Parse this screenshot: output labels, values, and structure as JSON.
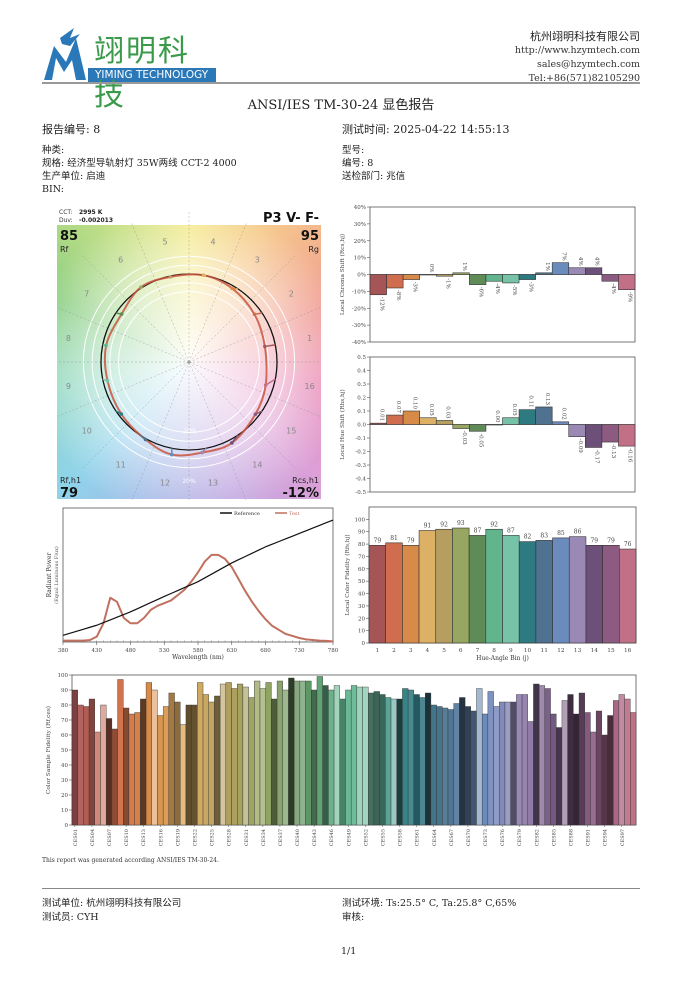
{
  "logo": {
    "cn": "翊明科技",
    "en": "YIMING TECHNOLOGY"
  },
  "company": {
    "name": "杭州翊明科技有限公司",
    "website": "http://www.hzymtech.com",
    "email": "sales@hzymtech.com",
    "tel": "Tel:+86(571)82105290"
  },
  "title": "ANSI/IES TM-30-24 显色报告",
  "info": {
    "report_no": "报告编号: 8",
    "test_time": "测试时间: 2025-04-22 14:55:13",
    "category": "种类:",
    "model": "型号:",
    "spec": "规格: 经济型导轨射灯 35W两线 CCT-2 4000",
    "number": "编号: 8",
    "manufacturer": "生产单位: 启迪",
    "department": "送检部门: 兆信",
    "bin": "BIN:"
  },
  "vector_graphic": {
    "cct_label": "CCT:",
    "cct": "2995 K",
    "duv_label": "Duv:",
    "duv": "-0.002013",
    "classification": "P3 V- F-",
    "rf": "85",
    "rf_label": "Rf",
    "rg": "95",
    "rg_label": "Rg",
    "rfh1_label": "Rf,h1",
    "rfh1": "79",
    "rcsh1_label": "Rcs,h1",
    "rcsh1": "-12%",
    "minus20": "-20%",
    "plus20": "20%",
    "bins": [
      "1",
      "2",
      "3",
      "4",
      "5",
      "6",
      "7",
      "8",
      "9",
      "10",
      "11",
      "12",
      "13",
      "14",
      "15",
      "16"
    ]
  },
  "chart_data": [
    {
      "type": "bar",
      "ylabel": "Local Chroma Shift (Rcs,hj)",
      "ylim": [
        -40,
        40
      ],
      "yticks": [
        "-40%",
        "-30%",
        "-20%",
        "-10%",
        "0%",
        "10%",
        "20%",
        "30%",
        "40%"
      ],
      "categories": [
        1,
        2,
        3,
        4,
        5,
        6,
        7,
        8,
        9,
        10,
        11,
        12,
        13,
        14,
        15,
        16
      ],
      "values": [
        -12,
        -8,
        -3,
        0,
        -1,
        1,
        -6,
        -4,
        -5,
        -3,
        1,
        7,
        4,
        4,
        -4,
        -9
      ],
      "labels": [
        "-12%",
        "-8%",
        "-3%",
        "0%",
        "-1%",
        "1%",
        "-6%",
        "-4%",
        "-5%",
        "-3%",
        "1%",
        "7%",
        "4%",
        "4%",
        "-4%",
        "-9%"
      ]
    },
    {
      "type": "bar",
      "ylabel": "Local Hue Shift (Rhs,hj)",
      "ylim": [
        -0.5,
        0.5
      ],
      "yticks": [
        "-0.5",
        "-0.4",
        "-0.3",
        "-0.2",
        "-0.1",
        "0.0",
        "0.1",
        "0.2",
        "0.3",
        "0.4",
        "0.5"
      ],
      "categories": [
        1,
        2,
        3,
        4,
        5,
        6,
        7,
        8,
        9,
        10,
        11,
        12,
        13,
        14,
        15,
        16
      ],
      "values": [
        0.01,
        0.07,
        0.1,
        0.05,
        0.03,
        -0.03,
        -0.05,
        0.0,
        0.05,
        0.11,
        0.13,
        0.02,
        -0.09,
        -0.17,
        -0.13,
        -0.16
      ],
      "labels": [
        "0.01",
        "0.07",
        "0.10",
        "0.05",
        "0.03",
        "-0.03",
        "-0.05",
        "0.00",
        "0.05",
        "0.11",
        "0.13",
        "0.02",
        "-0.09",
        "-0.17",
        "-0.13",
        "-0.16"
      ]
    },
    {
      "type": "line",
      "xlabel": "Wavelength (nm)",
      "ylabel": "Radiant Power",
      "ylabel2": "(Equal Luminous Flux)",
      "xlim": [
        380,
        780
      ],
      "xticks": [
        "380",
        "430",
        "480",
        "530",
        "580",
        "630",
        "680",
        "730",
        "780"
      ],
      "legend": "top-right",
      "x": [
        380,
        390,
        400,
        410,
        420,
        430,
        440,
        450,
        460,
        470,
        480,
        490,
        500,
        510,
        520,
        530,
        540,
        550,
        560,
        570,
        580,
        590,
        600,
        610,
        620,
        630,
        640,
        650,
        660,
        670,
        680,
        690,
        700,
        710,
        720,
        730,
        740,
        750,
        760,
        770,
        780
      ],
      "series": [
        {
          "name": "Reference",
          "color": "#111111",
          "values": [
            0.05,
            0.065,
            0.08,
            0.095,
            0.11,
            0.125,
            0.145,
            0.165,
            0.185,
            0.205,
            0.225,
            0.248,
            0.271,
            0.294,
            0.317,
            0.34,
            0.362,
            0.384,
            0.406,
            0.428,
            0.45,
            0.478,
            0.506,
            0.534,
            0.562,
            0.59,
            0.614,
            0.638,
            0.662,
            0.686,
            0.71,
            0.73,
            0.75,
            0.77,
            0.79,
            0.81,
            0.83,
            0.85,
            0.87,
            0.89,
            0.91
          ]
        },
        {
          "name": "Test",
          "color": "#c0705f",
          "values": [
            0.01,
            0.01,
            0.01,
            0.01,
            0.015,
            0.04,
            0.14,
            0.33,
            0.3,
            0.18,
            0.14,
            0.14,
            0.18,
            0.24,
            0.27,
            0.29,
            0.31,
            0.35,
            0.39,
            0.45,
            0.52,
            0.6,
            0.65,
            0.65,
            0.62,
            0.56,
            0.47,
            0.38,
            0.3,
            0.23,
            0.17,
            0.12,
            0.09,
            0.06,
            0.045,
            0.03,
            0.02,
            0.015,
            0.01,
            0.008,
            0.005
          ]
        }
      ]
    },
    {
      "type": "bar",
      "xlabel": "Hue-Angle Bin (j)",
      "ylabel": "Local Color Fidelity (Rfs,hj)",
      "ylim": [
        0,
        110
      ],
      "yticks": [
        "0",
        "10",
        "20",
        "30",
        "40",
        "50",
        "60",
        "70",
        "80",
        "90",
        "100"
      ],
      "categories": [
        "1",
        "2",
        "3",
        "4",
        "5",
        "6",
        "7",
        "8",
        "9",
        "10",
        "11",
        "12",
        "13",
        "14",
        "15",
        "16"
      ],
      "values": [
        79,
        81,
        79,
        91,
        92,
        93,
        87,
        92,
        87,
        82,
        83,
        85,
        86,
        79,
        79,
        76
      ]
    },
    {
      "type": "bar",
      "ylabel": "Color Sample Fidelity (Rf,ces)",
      "ylim": [
        0,
        100
      ],
      "yticks": [
        "0",
        "10",
        "20",
        "30",
        "40",
        "50",
        "60",
        "70",
        "80",
        "90",
        "100"
      ],
      "xticks": [
        "CES01",
        "CES04",
        "CES07",
        "CES10",
        "CES13",
        "CES16",
        "CES19",
        "CES22",
        "CES25",
        "CES28",
        "CES31",
        "CES34",
        "CES37",
        "CES40",
        "CES43",
        "CES46",
        "CES49",
        "CES52",
        "CES55",
        "CES58",
        "CES61",
        "CES64",
        "CES67",
        "CES70",
        "CES73",
        "CES76",
        "CES79",
        "CES82",
        "CES85",
        "CES88",
        "CES91",
        "CES94",
        "CES97"
      ],
      "values": [
        90,
        80,
        79,
        84,
        62,
        80,
        71,
        64,
        97,
        78,
        74,
        75,
        84,
        95,
        90,
        73,
        79,
        88,
        82,
        67,
        80,
        80,
        95,
        87,
        82,
        86,
        94,
        95,
        91,
        94,
        92,
        85,
        96,
        91,
        95,
        84,
        96,
        90,
        98,
        96,
        96,
        96,
        90,
        99,
        93,
        90,
        93,
        84,
        90,
        93,
        92,
        92,
        88,
        89,
        87,
        85,
        84,
        84,
        91,
        90,
        87,
        85,
        88,
        80,
        79,
        78,
        77,
        81,
        85,
        79,
        76,
        91,
        74,
        89,
        79,
        82,
        82,
        82,
        87,
        87,
        69,
        94,
        93,
        91,
        74,
        65,
        83,
        87,
        74,
        88,
        75,
        62,
        76,
        60,
        73,
        83,
        87,
        84,
        75
      ]
    }
  ],
  "bin_colors": [
    "#a55556",
    "#cf6d4e",
    "#d88a48",
    "#ddb165",
    "#b59e5f",
    "#97a660",
    "#5e8b56",
    "#62b48c",
    "#77c3a7",
    "#2d7b80",
    "#4e7290",
    "#6b8bbd",
    "#9b89b5",
    "#6d5079",
    "#8d5b82",
    "#c27087"
  ],
  "note": "This report was generated according ANSI/IES TM-30-24.",
  "footer": {
    "lab": "测试单位: 杭州翊明科技有限公司",
    "env": "测试环境: Ts:25.5° C, Ta:25.8° C,65%",
    "tester": "测试员: CYH",
    "reviewer": "审核:",
    "page": "1/1"
  }
}
